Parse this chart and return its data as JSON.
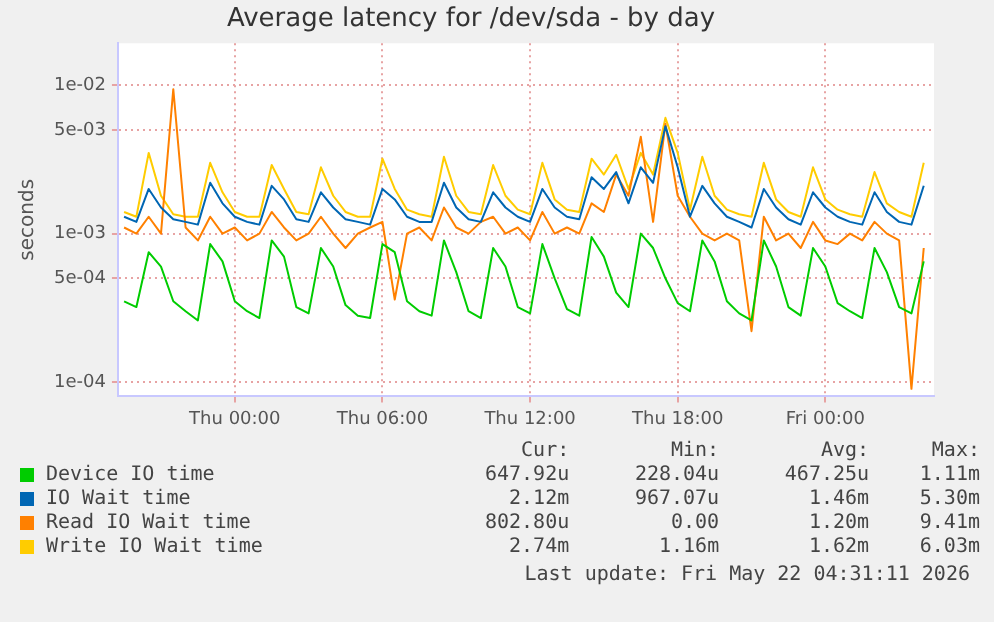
{
  "chart_data": {
    "type": "line",
    "title": "Average latency for /dev/sda - by day",
    "ylabel": "seconds",
    "log": true,
    "grid": true,
    "legend": "bottom",
    "x": [
      "2026-05-20T19:30",
      "2026-05-20T20:00",
      "2026-05-20T20:30",
      "2026-05-20T21:00",
      "2026-05-20T21:30",
      "2026-05-20T22:00",
      "2026-05-20T22:30",
      "2026-05-20T23:00",
      "2026-05-20T23:30",
      "2026-05-21T00:00",
      "2026-05-21T00:30",
      "2026-05-21T01:00",
      "2026-05-21T01:30",
      "2026-05-21T02:00",
      "2026-05-21T02:30",
      "2026-05-21T03:00",
      "2026-05-21T03:30",
      "2026-05-21T04:00",
      "2026-05-21T04:30",
      "2026-05-21T05:00",
      "2026-05-21T05:30",
      "2026-05-21T06:00",
      "2026-05-21T06:30",
      "2026-05-21T07:00",
      "2026-05-21T07:30",
      "2026-05-21T08:00",
      "2026-05-21T08:30",
      "2026-05-21T09:00",
      "2026-05-21T09:30",
      "2026-05-21T10:00",
      "2026-05-21T10:30",
      "2026-05-21T11:00",
      "2026-05-21T11:30",
      "2026-05-21T12:00",
      "2026-05-21T12:30",
      "2026-05-21T13:00",
      "2026-05-21T13:30",
      "2026-05-21T14:00",
      "2026-05-21T14:30",
      "2026-05-21T15:00",
      "2026-05-21T15:30",
      "2026-05-21T16:00",
      "2026-05-21T16:30",
      "2026-05-21T17:00",
      "2026-05-21T17:30",
      "2026-05-21T18:00",
      "2026-05-21T18:30",
      "2026-05-21T19:00",
      "2026-05-21T19:30",
      "2026-05-21T20:00",
      "2026-05-21T20:30",
      "2026-05-21T21:00",
      "2026-05-21T21:30",
      "2026-05-21T22:00",
      "2026-05-21T22:30",
      "2026-05-21T23:00",
      "2026-05-21T23:30",
      "2026-05-22T00:00",
      "2026-05-22T00:30",
      "2026-05-22T01:00",
      "2026-05-22T01:30",
      "2026-05-22T02:00",
      "2026-05-22T02:30",
      "2026-05-22T03:00",
      "2026-05-22T03:30",
      "2026-05-22T04:00"
    ],
    "xlim": [
      "2026-05-20T19:15",
      "2026-05-22T04:25"
    ],
    "xticks": [
      {
        "value": "2026-05-21T00:00",
        "label": "Thu 00:00"
      },
      {
        "value": "2026-05-21T06:00",
        "label": "Thu 06:00"
      },
      {
        "value": "2026-05-21T12:00",
        "label": "Thu 12:00"
      },
      {
        "value": "2026-05-21T18:00",
        "label": "Thu 18:00"
      },
      {
        "value": "2026-05-22T00:00",
        "label": "Fri 00:00"
      }
    ],
    "ylim": [
      8e-05,
      0.0192
    ],
    "yticks": [
      {
        "value": 0.0001,
        "label": "1e-04"
      },
      {
        "value": 0.0005,
        "label": "5e-04"
      },
      {
        "value": 0.001,
        "label": "1e-03"
      },
      {
        "value": 0.005,
        "label": "5e-03"
      },
      {
        "value": 0.01,
        "label": "1e-02"
      }
    ],
    "series": [
      {
        "name": "Device IO time",
        "color": "#00cc00",
        "values": [
          0.00035,
          0.00032,
          0.00075,
          0.0006,
          0.00035,
          0.0003,
          0.00026,
          0.00085,
          0.00065,
          0.00035,
          0.0003,
          0.00027,
          0.0009,
          0.0007,
          0.00032,
          0.00029,
          0.0008,
          0.0006,
          0.00033,
          0.00028,
          0.00027,
          0.00085,
          0.00075,
          0.00035,
          0.0003,
          0.00028,
          0.0009,
          0.00055,
          0.0003,
          0.00027,
          0.0008,
          0.0006,
          0.00032,
          0.00029,
          0.00085,
          0.0005,
          0.00031,
          0.00028,
          0.00095,
          0.0007,
          0.0004,
          0.00032,
          0.001,
          0.0008,
          0.0005,
          0.00034,
          0.0003,
          0.0009,
          0.00065,
          0.00035,
          0.00029,
          0.00026,
          0.0009,
          0.0006,
          0.00032,
          0.00028,
          0.0008,
          0.0006,
          0.00034,
          0.0003,
          0.00027,
          0.0008,
          0.00055,
          0.00032,
          0.00029,
          0.00065
        ]
      },
      {
        "name": "IO Wait time",
        "color": "#0066b3",
        "values": [
          0.0013,
          0.0012,
          0.002,
          0.0015,
          0.00125,
          0.0012,
          0.00115,
          0.0022,
          0.0016,
          0.0013,
          0.0012,
          0.00115,
          0.0021,
          0.0017,
          0.00125,
          0.0012,
          0.0019,
          0.0015,
          0.00125,
          0.0012,
          0.00115,
          0.002,
          0.0017,
          0.0013,
          0.0012,
          0.0012,
          0.0022,
          0.0015,
          0.00125,
          0.0012,
          0.0019,
          0.0015,
          0.0013,
          0.0012,
          0.002,
          0.0015,
          0.0013,
          0.00125,
          0.0024,
          0.002,
          0.0026,
          0.0016,
          0.0028,
          0.0022,
          0.0053,
          0.0028,
          0.0013,
          0.0021,
          0.0016,
          0.0013,
          0.0012,
          0.0011,
          0.002,
          0.0015,
          0.00125,
          0.00115,
          0.0019,
          0.0015,
          0.0013,
          0.0012,
          0.00115,
          0.0019,
          0.0014,
          0.0012,
          0.00115,
          0.0021
        ]
      },
      {
        "name": "Read IO Wait time",
        "color": "#ff8000",
        "values": [
          0.0011,
          0.001,
          0.0013,
          0.001,
          0.00941,
          0.0011,
          0.0009,
          0.0013,
          0.001,
          0.0011,
          0.0009,
          0.001,
          0.0014,
          0.0011,
          0.0009,
          0.001,
          0.0013,
          0.001,
          0.0008,
          0.001,
          0.0011,
          0.0012,
          0.00036,
          0.001,
          0.0011,
          0.0009,
          0.0015,
          0.0011,
          0.001,
          0.0012,
          0.0013,
          0.001,
          0.0011,
          0.0009,
          0.0014,
          0.001,
          0.0011,
          0.001,
          0.0016,
          0.0014,
          0.0025,
          0.0018,
          0.0045,
          0.0012,
          0.0055,
          0.0018,
          0.0013,
          0.001,
          0.0009,
          0.001,
          0.0009,
          0.00022,
          0.0013,
          0.0009,
          0.001,
          0.0008,
          0.0012,
          0.0009,
          0.00085,
          0.001,
          0.0009,
          0.0012,
          0.001,
          0.0009,
          9e-05,
          0.0008
        ]
      },
      {
        "name": "Write IO Wait time",
        "color": "#ffcc00",
        "values": [
          0.0014,
          0.0013,
          0.0035,
          0.0018,
          0.00135,
          0.0013,
          0.0013,
          0.003,
          0.0019,
          0.0014,
          0.0013,
          0.0013,
          0.0029,
          0.002,
          0.0014,
          0.00135,
          0.0028,
          0.0018,
          0.0014,
          0.0013,
          0.0013,
          0.0032,
          0.002,
          0.00145,
          0.00135,
          0.0013,
          0.0033,
          0.0018,
          0.0014,
          0.00135,
          0.0029,
          0.0018,
          0.00145,
          0.00135,
          0.003,
          0.0017,
          0.00145,
          0.0014,
          0.0032,
          0.0025,
          0.0034,
          0.002,
          0.0035,
          0.0025,
          0.00603,
          0.0035,
          0.00145,
          0.0033,
          0.0018,
          0.00145,
          0.00135,
          0.0013,
          0.003,
          0.0017,
          0.0014,
          0.0013,
          0.0028,
          0.0017,
          0.00145,
          0.00135,
          0.0013,
          0.0026,
          0.0016,
          0.0014,
          0.0013,
          0.003
        ]
      }
    ],
    "annotations": [
      "Cur:",
      "Min:",
      "Avg:",
      "Max:",
      "647.92u",
      "228.04u",
      "467.25u",
      "1.11m",
      "2.12m",
      "967.07u",
      "1.46m",
      "5.30m",
      "802.80u",
      "0.00",
      "1.20m",
      "9.41m",
      "2.74m",
      "1.16m",
      "1.62m",
      "6.03m",
      "Last update: Fri May 22 04:31:11 2026"
    ]
  }
}
